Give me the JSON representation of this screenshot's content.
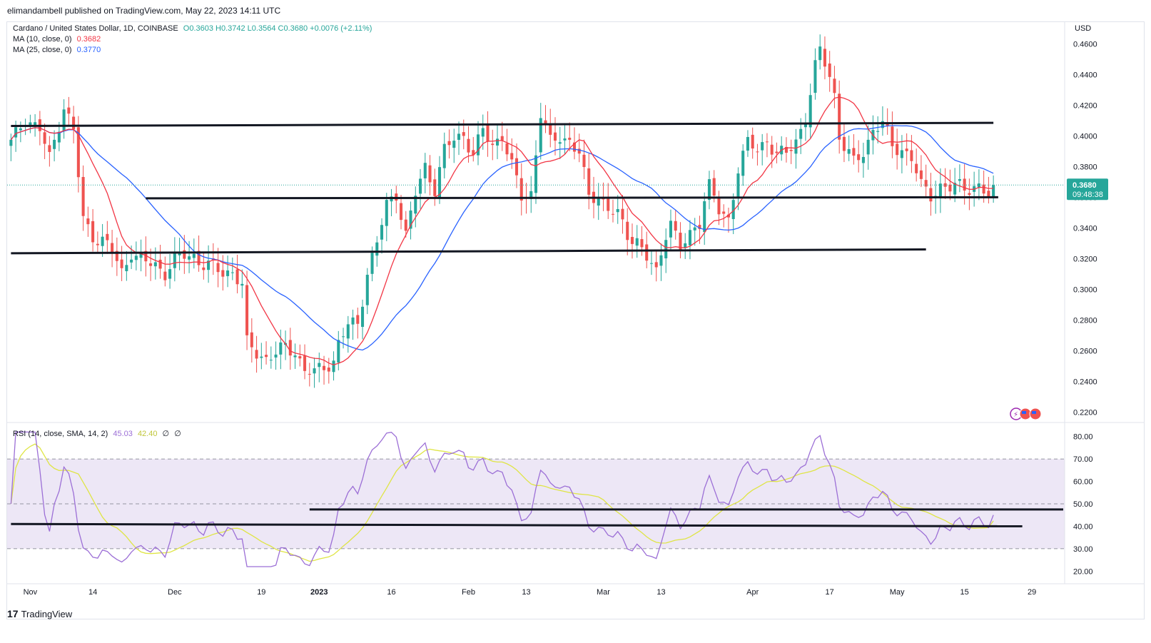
{
  "header": {
    "publisher": "elimandambell published on TradingView.com, May 22, 2023 14:11 UTC"
  },
  "legend": {
    "symbol": "Cardano / United States Dollar, 1D, COINBASE",
    "ohlc": "O0.3603 H0.3742 L0.3564 C0.3680 +0.0076 (+2.11%)",
    "ma10_label": "MA (10, close, 0)",
    "ma10_value": "0.3682",
    "ma25_label": "MA (25, close, 0)",
    "ma25_value": "0.3770",
    "rsi_label": "RSI (14, close, SMA, 14, 2)",
    "rsi_value": "45.03",
    "rsi_sma_value": "42.40",
    "rsi_extra1": "∅",
    "rsi_extra2": "∅"
  },
  "price_axis": {
    "currency": "USD",
    "last_price": "0.3680",
    "countdown": "09:48:38"
  },
  "footer": {
    "brand": "TradingView",
    "logo_text": "17"
  },
  "colors": {
    "up": "#26a69a",
    "down": "#ef5350",
    "ma10": "#f23645",
    "ma25": "#2962ff",
    "rsi": "#9c6fd6",
    "rsi_sma": "#dfe545",
    "band": "#ede7f6"
  },
  "chart_data": {
    "type": "candlestick",
    "title": "Cardano / United States Dollar, 1D, COINBASE",
    "ylim": [
      0.215,
      0.47
    ],
    "y_ticks": [
      0.22,
      0.24,
      0.26,
      0.28,
      0.3,
      0.32,
      0.34,
      0.36,
      0.38,
      0.4,
      0.42,
      0.44,
      0.46
    ],
    "y_tick_labels": [
      "0.2200",
      "0.2400",
      "0.2600",
      "0.2800",
      "0.3000",
      "0.3200",
      "0.3400",
      "0.3600",
      "0.3800",
      "0.4000",
      "0.4200",
      "0.4400",
      "0.4600"
    ],
    "x_ticks": [
      {
        "day": 4,
        "label": "Nov"
      },
      {
        "day": 17,
        "label": "14"
      },
      {
        "day": 34,
        "label": "Dec"
      },
      {
        "day": 52,
        "label": "19"
      },
      {
        "day": 64,
        "label": "2023"
      },
      {
        "day": 79,
        "label": "16"
      },
      {
        "day": 95,
        "label": "Feb"
      },
      {
        "day": 107,
        "label": "13"
      },
      {
        "day": 123,
        "label": "Mar"
      },
      {
        "day": 135,
        "label": "13"
      },
      {
        "day": 154,
        "label": "Apr"
      },
      {
        "day": 170,
        "label": "17"
      },
      {
        "day": 184,
        "label": "May"
      },
      {
        "day": 198,
        "label": "15"
      },
      {
        "day": 212,
        "label": "29"
      }
    ],
    "days_visible": 219,
    "close_anchors": [
      [
        0,
        0.395
      ],
      [
        3,
        0.412
      ],
      [
        6,
        0.404
      ],
      [
        8,
        0.385
      ],
      [
        11,
        0.42
      ],
      [
        13,
        0.403
      ],
      [
        15,
        0.345
      ],
      [
        17,
        0.335
      ],
      [
        19,
        0.332
      ],
      [
        21,
        0.325
      ],
      [
        23,
        0.311
      ],
      [
        25,
        0.325
      ],
      [
        27,
        0.318
      ],
      [
        30,
        0.316
      ],
      [
        32,
        0.311
      ],
      [
        34,
        0.319
      ],
      [
        36,
        0.322
      ],
      [
        38,
        0.322
      ],
      [
        40,
        0.316
      ],
      [
        42,
        0.314
      ],
      [
        44,
        0.311
      ],
      [
        46,
        0.312
      ],
      [
        48,
        0.302
      ],
      [
        49,
        0.264
      ],
      [
        51,
        0.259
      ],
      [
        53,
        0.255
      ],
      [
        55,
        0.258
      ],
      [
        57,
        0.262
      ],
      [
        59,
        0.26
      ],
      [
        61,
        0.247
      ],
      [
        63,
        0.245
      ],
      [
        65,
        0.25
      ],
      [
        67,
        0.253
      ],
      [
        68,
        0.265
      ],
      [
        70,
        0.276
      ],
      [
        72,
        0.278
      ],
      [
        74,
        0.311
      ],
      [
        76,
        0.33
      ],
      [
        78,
        0.355
      ],
      [
        80,
        0.363
      ],
      [
        82,
        0.335
      ],
      [
        84,
        0.362
      ],
      [
        86,
        0.38
      ],
      [
        88,
        0.366
      ],
      [
        90,
        0.39
      ],
      [
        92,
        0.398
      ],
      [
        94,
        0.401
      ],
      [
        96,
        0.388
      ],
      [
        98,
        0.403
      ],
      [
        100,
        0.394
      ],
      [
        102,
        0.401
      ],
      [
        104,
        0.38
      ],
      [
        106,
        0.36
      ],
      [
        108,
        0.363
      ],
      [
        110,
        0.415
      ],
      [
        112,
        0.395
      ],
      [
        114,
        0.4
      ],
      [
        116,
        0.397
      ],
      [
        118,
        0.388
      ],
      [
        120,
        0.36
      ],
      [
        122,
        0.362
      ],
      [
        124,
        0.352
      ],
      [
        126,
        0.348
      ],
      [
        128,
        0.336
      ],
      [
        130,
        0.332
      ],
      [
        132,
        0.32
      ],
      [
        134,
        0.31
      ],
      [
        136,
        0.338
      ],
      [
        137,
        0.345
      ],
      [
        139,
        0.325
      ],
      [
        141,
        0.335
      ],
      [
        143,
        0.345
      ],
      [
        144,
        0.36
      ],
      [
        145,
        0.368
      ],
      [
        147,
        0.35
      ],
      [
        149,
        0.345
      ],
      [
        151,
        0.38
      ],
      [
        153,
        0.395
      ],
      [
        155,
        0.39
      ],
      [
        157,
        0.398
      ],
      [
        159,
        0.388
      ],
      [
        161,
        0.388
      ],
      [
        163,
        0.397
      ],
      [
        165,
        0.412
      ],
      [
        166,
        0.428
      ],
      [
        167,
        0.444
      ],
      [
        168,
        0.455
      ],
      [
        169,
        0.448
      ],
      [
        170,
        0.44
      ],
      [
        171,
        0.427
      ],
      [
        172,
        0.4
      ],
      [
        173,
        0.393
      ],
      [
        175,
        0.382
      ],
      [
        177,
        0.39
      ],
      [
        179,
        0.404
      ],
      [
        181,
        0.408
      ],
      [
        183,
        0.393
      ],
      [
        185,
        0.392
      ],
      [
        187,
        0.385
      ],
      [
        189,
        0.367
      ],
      [
        191,
        0.362
      ],
      [
        193,
        0.367
      ],
      [
        195,
        0.365
      ],
      [
        197,
        0.368
      ],
      [
        199,
        0.367
      ],
      [
        201,
        0.366
      ],
      [
        203,
        0.36
      ],
      [
        204,
        0.368
      ]
    ],
    "ma10_label": "MA (10, close, 0) 0.3682",
    "ma25_label": "MA (25, close, 0) 0.3770",
    "last": {
      "open": 0.3603,
      "high": 0.3742,
      "low": 0.3564,
      "close": 0.368,
      "change": "+0.0076",
      "change_pct": "+2.11%"
    },
    "trend_lines": [
      {
        "from_day": 0,
        "from_price": 0.4065,
        "to_day": 204,
        "to_price": 0.4085
      },
      {
        "from_day": 28,
        "from_price": 0.3593,
        "to_day": 205,
        "to_price": 0.36
      },
      {
        "from_day": 0,
        "from_price": 0.3235,
        "to_day": 190,
        "to_price": 0.326
      }
    ],
    "rsi_panel": {
      "label": "RSI (14, close, SMA, 14, 2)",
      "value": 45.03,
      "sma_value": 42.4,
      "ylim": [
        15,
        85
      ],
      "y_ticks": [
        20,
        30,
        40,
        50,
        60,
        70,
        80
      ],
      "y_tick_labels": [
        "20.00",
        "30.00",
        "40.00",
        "50.00",
        "60.00",
        "70.00",
        "80.00"
      ],
      "band": [
        30,
        70
      ],
      "midline": 50,
      "trend_lines": [
        {
          "from_day": 62,
          "from_value": 47.5,
          "to_day": 219,
          "to_value": 47.5
        },
        {
          "from_day": 0,
          "from_value": 41.0,
          "to_day": 210,
          "to_value": 40.0
        }
      ]
    }
  }
}
